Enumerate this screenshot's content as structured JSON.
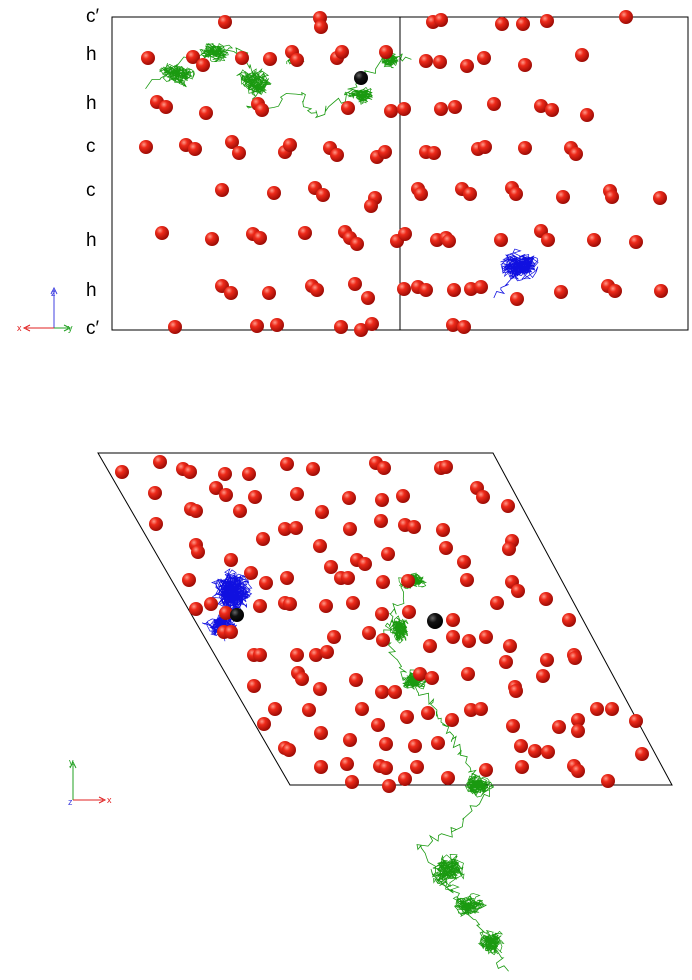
{
  "side_view": {
    "layer_labels": [
      "c′",
      "h",
      "h",
      "c",
      "c",
      "h",
      "h",
      "c′"
    ],
    "axis_triad": {
      "horizontal_left": "x",
      "horizontal_right": "y",
      "vertical": "z"
    }
  },
  "top_view": {
    "axis_triad": {
      "vertical": "y",
      "horizontal": "x",
      "corner": "z"
    }
  },
  "colors": {
    "oxygen_atom": "#e01010",
    "marker_atom": "#000000",
    "trajectory_green": "#1a9a10",
    "trajectory_blue": "#1010e0",
    "cell_outline": "#000000",
    "axis_x": "#e02020",
    "axis_y": "#20a020",
    "axis_z": "#4040e0"
  }
}
